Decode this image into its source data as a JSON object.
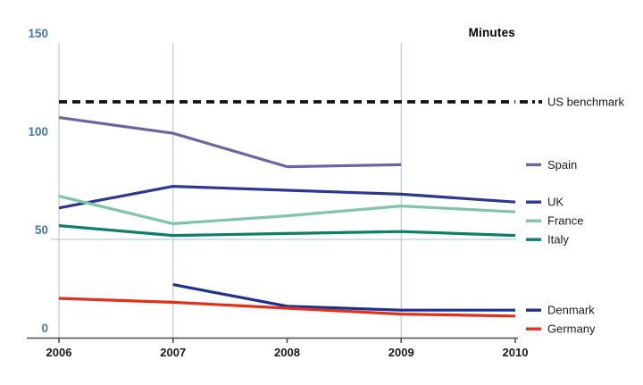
{
  "colors": {
    "axis_label_blue": "#4479a6",
    "gridline_blue": "#b5cfdf",
    "axis_line": "#4d4d4d",
    "text_dark": "#1a1a1a",
    "background": "#ffffff"
  },
  "chart_data": {
    "type": "line",
    "title": "",
    "y_axis_label": "Minutes",
    "x_ticks": [
      "2006",
      "2007",
      "2008",
      "2009",
      "2010"
    ],
    "y_ticks": [
      "0",
      "50",
      "100",
      "150"
    ],
    "ylim": [
      0,
      150
    ],
    "x_gridline_years": [
      2006,
      2007,
      2009
    ],
    "y_gridline_values": [
      50
    ],
    "legend_position": "right",
    "series": [
      {
        "name": "US benchmark",
        "color": "#121212",
        "dashed": true,
        "years": [
          2006,
          2010
        ],
        "values": [
          120,
          120
        ]
      },
      {
        "name": "Spain",
        "color": "#6f63a4",
        "dashed": false,
        "years": [
          2006,
          2007,
          2008,
          2009
        ],
        "values": [
          112,
          104,
          87,
          88
        ]
      },
      {
        "name": "UK",
        "color": "#2c3792",
        "dashed": false,
        "years": [
          2006,
          2007,
          2008,
          2009,
          2010
        ],
        "values": [
          66,
          77,
          75,
          73,
          69
        ]
      },
      {
        "name": "France",
        "color": "#7fc4ac",
        "dashed": false,
        "years": [
          2006,
          2007,
          2008,
          2009,
          2010
        ],
        "values": [
          72,
          58,
          62,
          67,
          64
        ]
      },
      {
        "name": "Italy",
        "color": "#0b7f68",
        "dashed": false,
        "years": [
          2006,
          2007,
          2008,
          2009,
          2010
        ],
        "values": [
          57,
          52,
          53,
          54,
          52
        ]
      },
      {
        "name": "Denmark",
        "color": "#1e3091",
        "dashed": false,
        "years": [
          2007,
          2008,
          2009,
          2010
        ],
        "values": [
          27,
          16,
          14,
          14
        ]
      },
      {
        "name": "Germany",
        "color": "#e2301b",
        "dashed": false,
        "years": [
          2006,
          2007,
          2008,
          2009,
          2010
        ],
        "values": [
          20,
          18,
          15,
          12,
          11
        ]
      }
    ]
  }
}
